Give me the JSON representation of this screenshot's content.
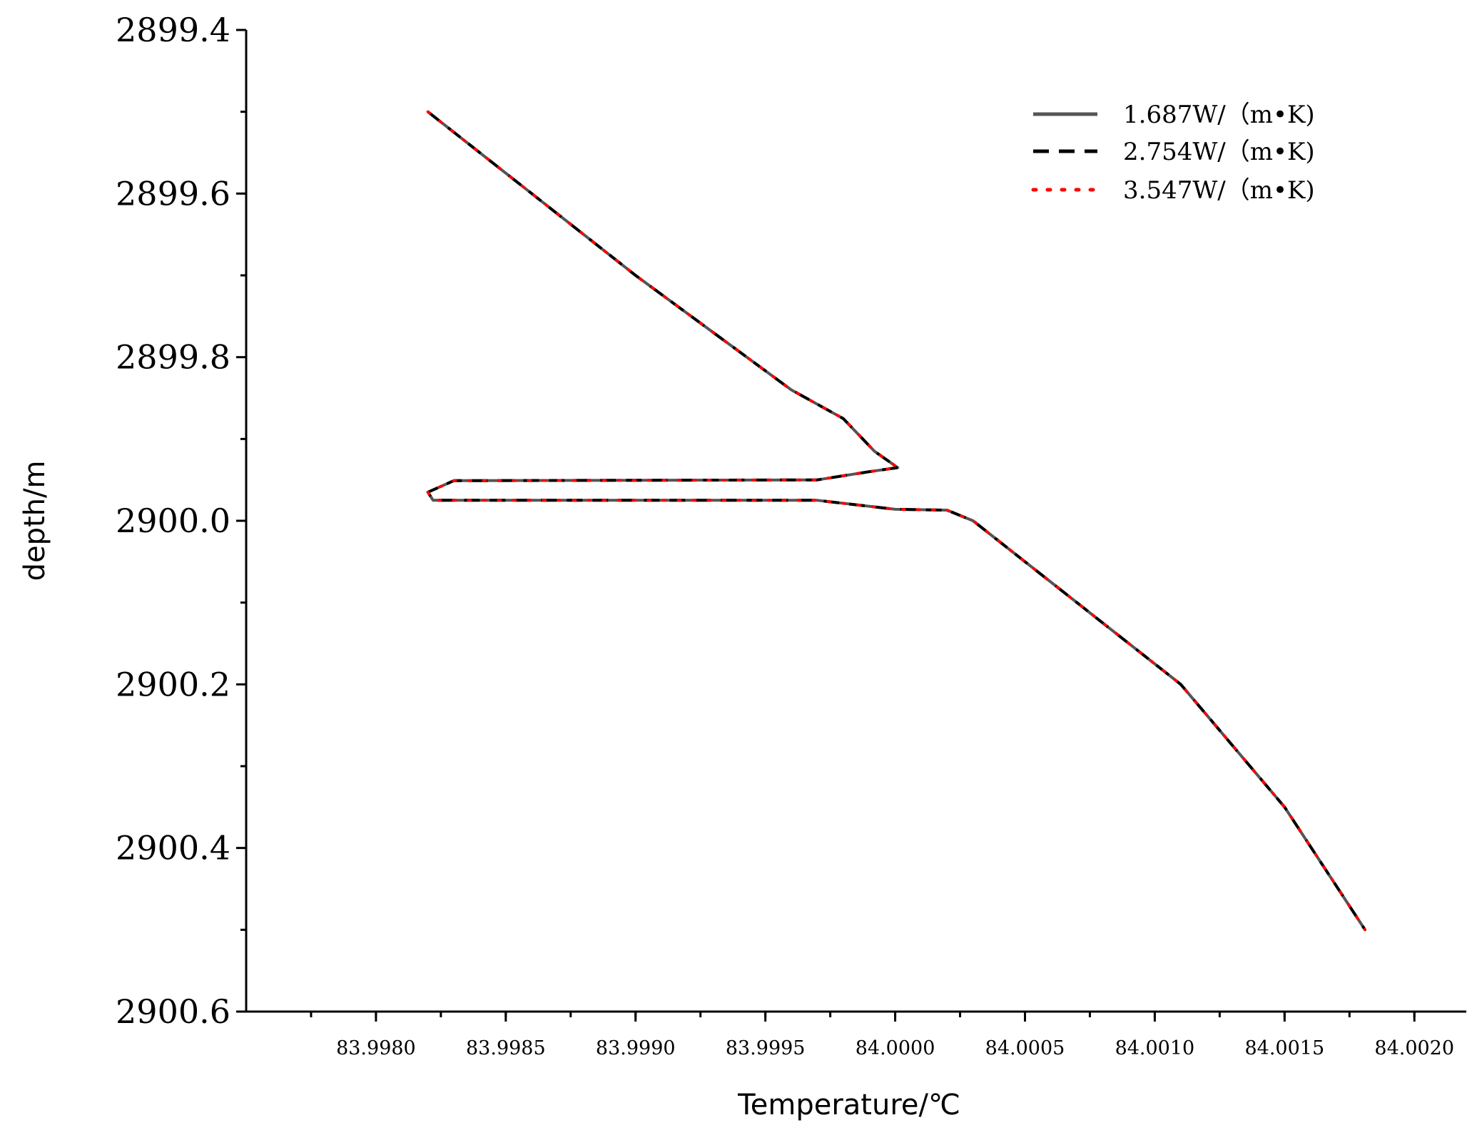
{
  "chart_data": {
    "type": "line",
    "title": "",
    "xlabel": "Temperature/℃",
    "ylabel": "depth/m",
    "xlim": [
      83.9975,
      84.0022
    ],
    "ylim": [
      2899.4,
      2900.6
    ],
    "y_inverted": true,
    "grid": false,
    "legend_position": "top-right",
    "x_ticks": [
      83.998,
      83.9985,
      83.999,
      83.9995,
      84.0,
      84.0005,
      84.001,
      84.0015,
      84.002
    ],
    "x_tick_labels": [
      "83.9980",
      "83.9985",
      "83.9990",
      "83.9995",
      "84.0000",
      "84.0005",
      "84.0010",
      "84.0015",
      "84.0020"
    ],
    "y_ticks": [
      2899.4,
      2899.6,
      2899.8,
      2900.0,
      2900.2,
      2900.4,
      2900.6
    ],
    "y_tick_labels": [
      "2899.4",
      "2899.6",
      "2899.8",
      "2900.0",
      "2900.2",
      "2900.4",
      "2900.6"
    ],
    "series": [
      {
        "name": "1.687W/（m•K)",
        "color": "#555555",
        "style": "solid"
      },
      {
        "name": "2.754W/（m•K)",
        "color": "#000000",
        "style": "dashed"
      },
      {
        "name": "3.547W/（m•K)",
        "color": "#ff0000",
        "style": "dotted"
      }
    ],
    "profile": {
      "temperature": [
        83.9982,
        83.99834,
        83.999,
        83.9996,
        83.9998,
        83.99992,
        84.00001,
        83.9999,
        83.9997,
        83.9983,
        83.9982,
        83.99822,
        83.9997,
        84.0,
        84.0002,
        84.0003,
        84.0007,
        84.0011,
        84.0015,
        84.00181
      ],
      "depth": [
        2899.5,
        2899.535,
        2899.7,
        2899.84,
        2899.875,
        2899.915,
        2899.935,
        2899.94,
        2899.95,
        2899.951,
        2899.965,
        2899.975,
        2899.975,
        2899.986,
        2899.987,
        2900.0,
        2900.1,
        2900.2,
        2900.35,
        2900.5
      ]
    }
  }
}
